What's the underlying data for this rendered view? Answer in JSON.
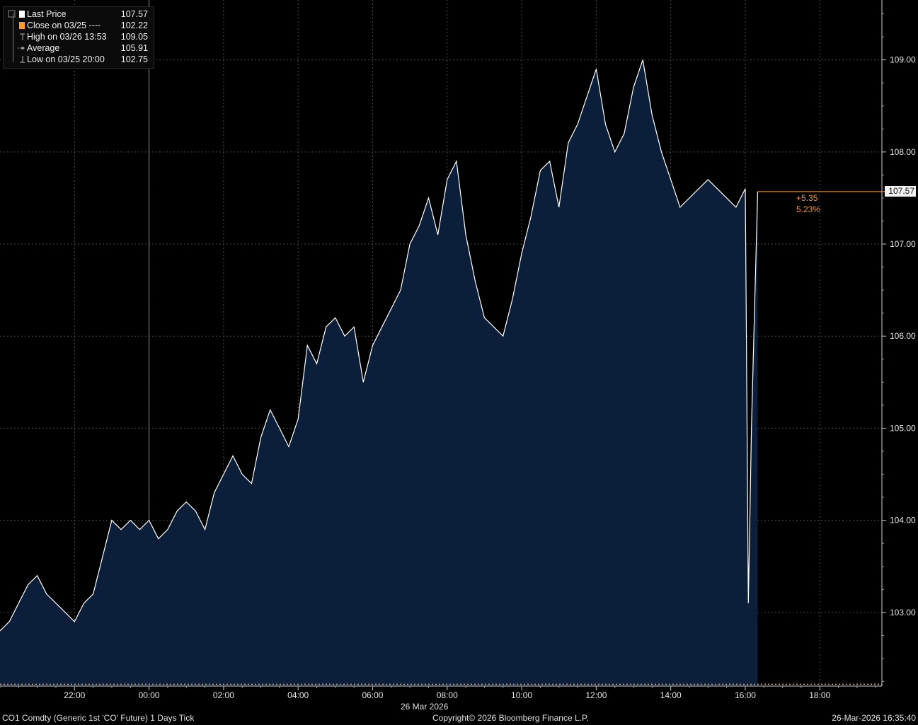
{
  "colors": {
    "background": "#000000",
    "area_fill": "#0b1f3a",
    "price_line": "#ffffff",
    "close_line": "#ff9b2e",
    "grid": "#4d4d4d",
    "accent_text": "#ff9b2e"
  },
  "legend": {
    "items": [
      {
        "icon": "square-white",
        "label": "Last Price",
        "value": "107.57"
      },
      {
        "icon": "square-orange",
        "label": "Close on 03/25 ----",
        "value": "102.22"
      },
      {
        "icon": "high-marker-icon",
        "label": "High on 03/26 13:53",
        "value": "109.05"
      },
      {
        "icon": "average-marker-icon",
        "label": "Average",
        "value": "105.91"
      },
      {
        "icon": "low-marker-icon",
        "label": "Low on 03/25 20:00",
        "value": "102.75"
      }
    ]
  },
  "last_price_tag": "107.57",
  "change": {
    "abs": "+5.35",
    "pct": "5.23%"
  },
  "footer": {
    "left": "CO1 Comdty (Generic 1st 'CO' Future) 1 Days Tick",
    "center": "Copyright© 2026 Bloomberg Finance L.P.",
    "right": "26-Mar-2026 16:35:40"
  },
  "chart_data": {
    "type": "area",
    "date_label": "26 Mar 2026",
    "xlim": [
      "25 Mar 2026 20:00",
      "26 Mar 2026 19:40"
    ],
    "ylim": [
      102.2,
      109.65
    ],
    "x_tick_labels": [
      "22:00",
      "00:00",
      "02:00",
      "04:00",
      "06:00",
      "08:00",
      "10:00",
      "12:00",
      "14:00",
      "16:00",
      "18:00"
    ],
    "y_tick_labels": [
      "103.00",
      "104.00",
      "105.00",
      "106.00",
      "107.00",
      "108.00",
      "109.00"
    ],
    "grid": true,
    "legend_position": "top-left",
    "reference_lines": [
      {
        "name": "Close on 03/25",
        "value": 102.22
      }
    ],
    "series": [
      {
        "name": "Last Price",
        "x": [
          "20:00",
          "20:15",
          "20:30",
          "20:45",
          "21:00",
          "21:15",
          "21:30",
          "21:45",
          "22:00",
          "22:15",
          "22:30",
          "22:45",
          "23:00",
          "23:15",
          "23:30",
          "23:45",
          "00:00",
          "00:15",
          "00:30",
          "00:45",
          "01:00",
          "01:15",
          "01:30",
          "01:45",
          "02:00",
          "02:15",
          "02:30",
          "02:45",
          "03:00",
          "03:15",
          "03:30",
          "03:45",
          "04:00",
          "04:15",
          "04:30",
          "04:45",
          "05:00",
          "05:15",
          "05:30",
          "05:45",
          "06:00",
          "06:15",
          "06:30",
          "06:45",
          "07:00",
          "07:15",
          "07:30",
          "07:45",
          "08:00",
          "08:15",
          "08:30",
          "08:45",
          "09:00",
          "09:15",
          "09:30",
          "09:45",
          "10:00",
          "10:15",
          "10:30",
          "10:45",
          "11:00",
          "11:15",
          "11:30",
          "11:45",
          "12:00",
          "12:15",
          "12:30",
          "12:45",
          "13:00",
          "13:15",
          "13:30",
          "13:45",
          "14:00",
          "14:15",
          "14:30",
          "14:45",
          "15:00",
          "15:15",
          "15:30",
          "15:45",
          "16:00",
          "16:05",
          "16:10",
          "16:15",
          "16:20"
        ],
        "values": [
          102.8,
          102.9,
          103.1,
          103.3,
          103.4,
          103.2,
          103.1,
          103.0,
          102.9,
          103.1,
          103.2,
          103.6,
          104.0,
          103.9,
          104.0,
          103.9,
          104.0,
          103.8,
          103.9,
          104.1,
          104.2,
          104.1,
          103.9,
          104.3,
          104.5,
          104.7,
          104.5,
          104.4,
          104.9,
          105.2,
          105.0,
          104.8,
          105.1,
          105.9,
          105.7,
          106.1,
          106.2,
          106.0,
          106.1,
          105.5,
          105.9,
          106.1,
          106.3,
          106.5,
          107.0,
          107.2,
          107.5,
          107.1,
          107.7,
          107.9,
          107.1,
          106.6,
          106.2,
          106.1,
          106.0,
          106.4,
          106.9,
          107.3,
          107.8,
          107.9,
          107.4,
          108.1,
          108.3,
          108.6,
          108.9,
          108.3,
          108.0,
          108.2,
          108.7,
          109.0,
          108.4,
          108.0,
          107.7,
          107.4,
          107.5,
          107.6,
          107.7,
          107.6,
          107.5,
          107.4,
          107.6,
          103.1,
          105.0,
          106.3,
          107.57
        ]
      }
    ]
  }
}
